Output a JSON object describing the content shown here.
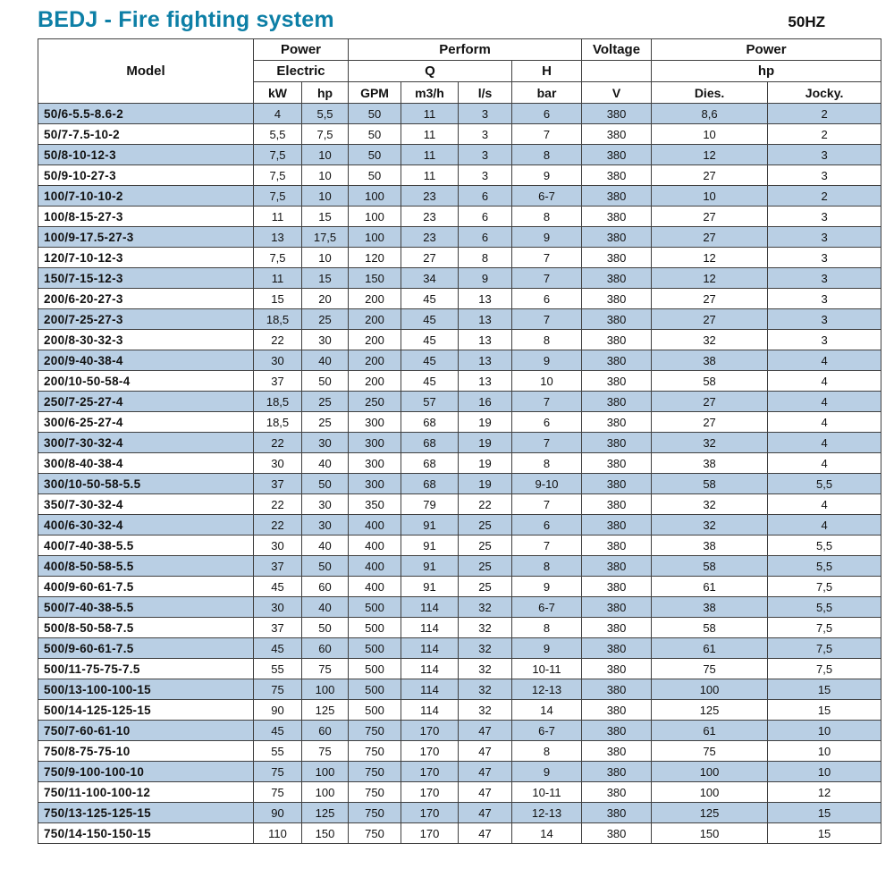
{
  "page": {
    "title": "BEDJ - Fire fighting system",
    "frequency": "50HZ"
  },
  "colors": {
    "title_blue": "#0d7fa6",
    "alt_row": "#b9cfe4",
    "grid": "#404040"
  },
  "table": {
    "header": {
      "model": "Model",
      "power_electric": {
        "line1": "Power",
        "line2": "Electric"
      },
      "perform": "Perform",
      "q": "Q",
      "h": "H",
      "voltage": "Voltage",
      "power_right": "Power",
      "hp_right": "hp",
      "sub": [
        "kW",
        "hp",
        "GPM",
        "m3/h",
        "l/s",
        "bar",
        "V",
        "Dies.",
        "Jocky."
      ]
    },
    "rows": [
      [
        "50/6-5.5-8.6-2",
        "4",
        "5,5",
        "50",
        "11",
        "3",
        "6",
        "380",
        "8,6",
        "2"
      ],
      [
        "50/7-7.5-10-2",
        "5,5",
        "7,5",
        "50",
        "11",
        "3",
        "7",
        "380",
        "10",
        "2"
      ],
      [
        "50/8-10-12-3",
        "7,5",
        "10",
        "50",
        "11",
        "3",
        "8",
        "380",
        "12",
        "3"
      ],
      [
        "50/9-10-27-3",
        "7,5",
        "10",
        "50",
        "11",
        "3",
        "9",
        "380",
        "27",
        "3"
      ],
      [
        "100/7-10-10-2",
        "7,5",
        "10",
        "100",
        "23",
        "6",
        "6-7",
        "380",
        "10",
        "2"
      ],
      [
        "100/8-15-27-3",
        "11",
        "15",
        "100",
        "23",
        "6",
        "8",
        "380",
        "27",
        "3"
      ],
      [
        "100/9-17.5-27-3",
        "13",
        "17,5",
        "100",
        "23",
        "6",
        "9",
        "380",
        "27",
        "3"
      ],
      [
        "120/7-10-12-3",
        "7,5",
        "10",
        "120",
        "27",
        "8",
        "7",
        "380",
        "12",
        "3"
      ],
      [
        "150/7-15-12-3",
        "11",
        "15",
        "150",
        "34",
        "9",
        "7",
        "380",
        "12",
        "3"
      ],
      [
        "200/6-20-27-3",
        "15",
        "20",
        "200",
        "45",
        "13",
        "6",
        "380",
        "27",
        "3"
      ],
      [
        "200/7-25-27-3",
        "18,5",
        "25",
        "200",
        "45",
        "13",
        "7",
        "380",
        "27",
        "3"
      ],
      [
        "200/8-30-32-3",
        "22",
        "30",
        "200",
        "45",
        "13",
        "8",
        "380",
        "32",
        "3"
      ],
      [
        "200/9-40-38-4",
        "30",
        "40",
        "200",
        "45",
        "13",
        "9",
        "380",
        "38",
        "4"
      ],
      [
        "200/10-50-58-4",
        "37",
        "50",
        "200",
        "45",
        "13",
        "10",
        "380",
        "58",
        "4"
      ],
      [
        "250/7-25-27-4",
        "18,5",
        "25",
        "250",
        "57",
        "16",
        "7",
        "380",
        "27",
        "4"
      ],
      [
        "300/6-25-27-4",
        "18,5",
        "25",
        "300",
        "68",
        "19",
        "6",
        "380",
        "27",
        "4"
      ],
      [
        "300/7-30-32-4",
        "22",
        "30",
        "300",
        "68",
        "19",
        "7",
        "380",
        "32",
        "4"
      ],
      [
        "300/8-40-38-4",
        "30",
        "40",
        "300",
        "68",
        "19",
        "8",
        "380",
        "38",
        "4"
      ],
      [
        "300/10-50-58-5.5",
        "37",
        "50",
        "300",
        "68",
        "19",
        "9-10",
        "380",
        "58",
        "5,5"
      ],
      [
        "350/7-30-32-4",
        "22",
        "30",
        "350",
        "79",
        "22",
        "7",
        "380",
        "32",
        "4"
      ],
      [
        "400/6-30-32-4",
        "22",
        "30",
        "400",
        "91",
        "25",
        "6",
        "380",
        "32",
        "4"
      ],
      [
        "400/7-40-38-5.5",
        "30",
        "40",
        "400",
        "91",
        "25",
        "7",
        "380",
        "38",
        "5,5"
      ],
      [
        "400/8-50-58-5.5",
        "37",
        "50",
        "400",
        "91",
        "25",
        "8",
        "380",
        "58",
        "5,5"
      ],
      [
        "400/9-60-61-7.5",
        "45",
        "60",
        "400",
        "91",
        "25",
        "9",
        "380",
        "61",
        "7,5"
      ],
      [
        "500/7-40-38-5.5",
        "30",
        "40",
        "500",
        "114",
        "32",
        "6-7",
        "380",
        "38",
        "5,5"
      ],
      [
        "500/8-50-58-7.5",
        "37",
        "50",
        "500",
        "114",
        "32",
        "8",
        "380",
        "58",
        "7,5"
      ],
      [
        "500/9-60-61-7.5",
        "45",
        "60",
        "500",
        "114",
        "32",
        "9",
        "380",
        "61",
        "7,5"
      ],
      [
        "500/11-75-75-7.5",
        "55",
        "75",
        "500",
        "114",
        "32",
        "10-11",
        "380",
        "75",
        "7,5"
      ],
      [
        "500/13-100-100-15",
        "75",
        "100",
        "500",
        "114",
        "32",
        "12-13",
        "380",
        "100",
        "15"
      ],
      [
        "500/14-125-125-15",
        "90",
        "125",
        "500",
        "114",
        "32",
        "14",
        "380",
        "125",
        "15"
      ],
      [
        "750/7-60-61-10",
        "45",
        "60",
        "750",
        "170",
        "47",
        "6-7",
        "380",
        "61",
        "10"
      ],
      [
        "750/8-75-75-10",
        "55",
        "75",
        "750",
        "170",
        "47",
        "8",
        "380",
        "75",
        "10"
      ],
      [
        "750/9-100-100-10",
        "75",
        "100",
        "750",
        "170",
        "47",
        "9",
        "380",
        "100",
        "10"
      ],
      [
        "750/11-100-100-12",
        "75",
        "100",
        "750",
        "170",
        "47",
        "10-11",
        "380",
        "100",
        "12"
      ],
      [
        "750/13-125-125-15",
        "90",
        "125",
        "750",
        "170",
        "47",
        "12-13",
        "380",
        "125",
        "15"
      ],
      [
        "750/14-150-150-15",
        "110",
        "150",
        "750",
        "170",
        "47",
        "14",
        "380",
        "150",
        "15"
      ]
    ]
  }
}
